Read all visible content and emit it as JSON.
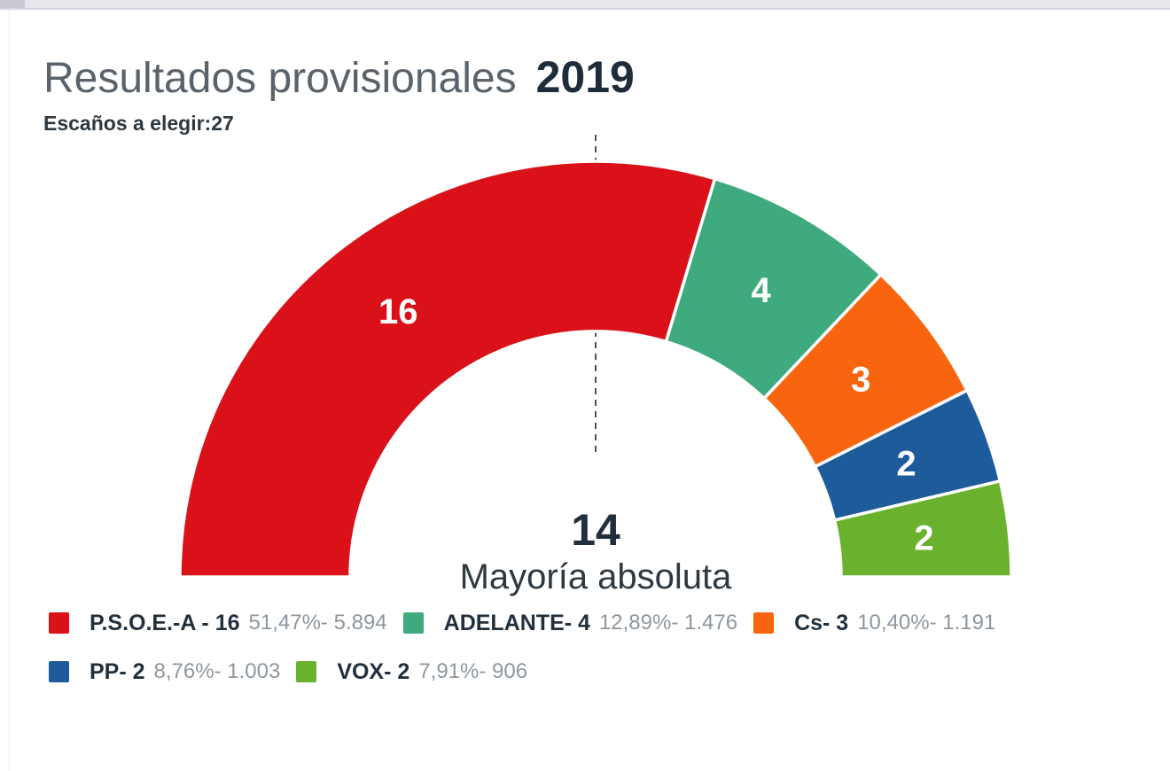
{
  "header": {
    "title": "Resultados provisionales",
    "year": "2019",
    "subtitle": "Escaños a elegir:27"
  },
  "chart_data": {
    "type": "pie",
    "variant": "half-donut",
    "title": "Resultados provisionales 2019",
    "subtitle": "Escaños a elegir:27",
    "total_seats": 27,
    "majority": {
      "display": "14",
      "label": "Mayoría absoluta",
      "threshold_seats": 13.5
    },
    "layout": {
      "start_angle_deg": -90,
      "end_angle_deg": 90,
      "inner_radius_ratio": 0.59,
      "legend_position": "bottom",
      "segment_border_color": "#ffffff"
    },
    "series": [
      {
        "name": "P.S.O.E.-A",
        "seats": 16,
        "percent": 51.47,
        "votes": 5894,
        "color": "#db111a",
        "label": "P.S.O.E.-A - 16",
        "detail": "51,47%- 5.894"
      },
      {
        "name": "ADELANTE",
        "seats": 4,
        "percent": 12.89,
        "votes": 1476,
        "color": "#3faa7d",
        "label": "ADELANTE- 4",
        "detail": "12,89%- 1.476"
      },
      {
        "name": "Cs",
        "seats": 3,
        "percent": 10.4,
        "votes": 1191,
        "color": "#f9650f",
        "label": "Cs- 3",
        "detail": "10,40%- 1.191"
      },
      {
        "name": "PP",
        "seats": 2,
        "percent": 8.76,
        "votes": 1003,
        "color": "#1d5b9b",
        "label": "PP- 2",
        "detail": "8,76%- 1.003"
      },
      {
        "name": "VOX",
        "seats": 2,
        "percent": 7.91,
        "votes": 906,
        "color": "#6ab22d",
        "label": "VOX- 2",
        "detail": "7,91%- 906"
      }
    ]
  }
}
